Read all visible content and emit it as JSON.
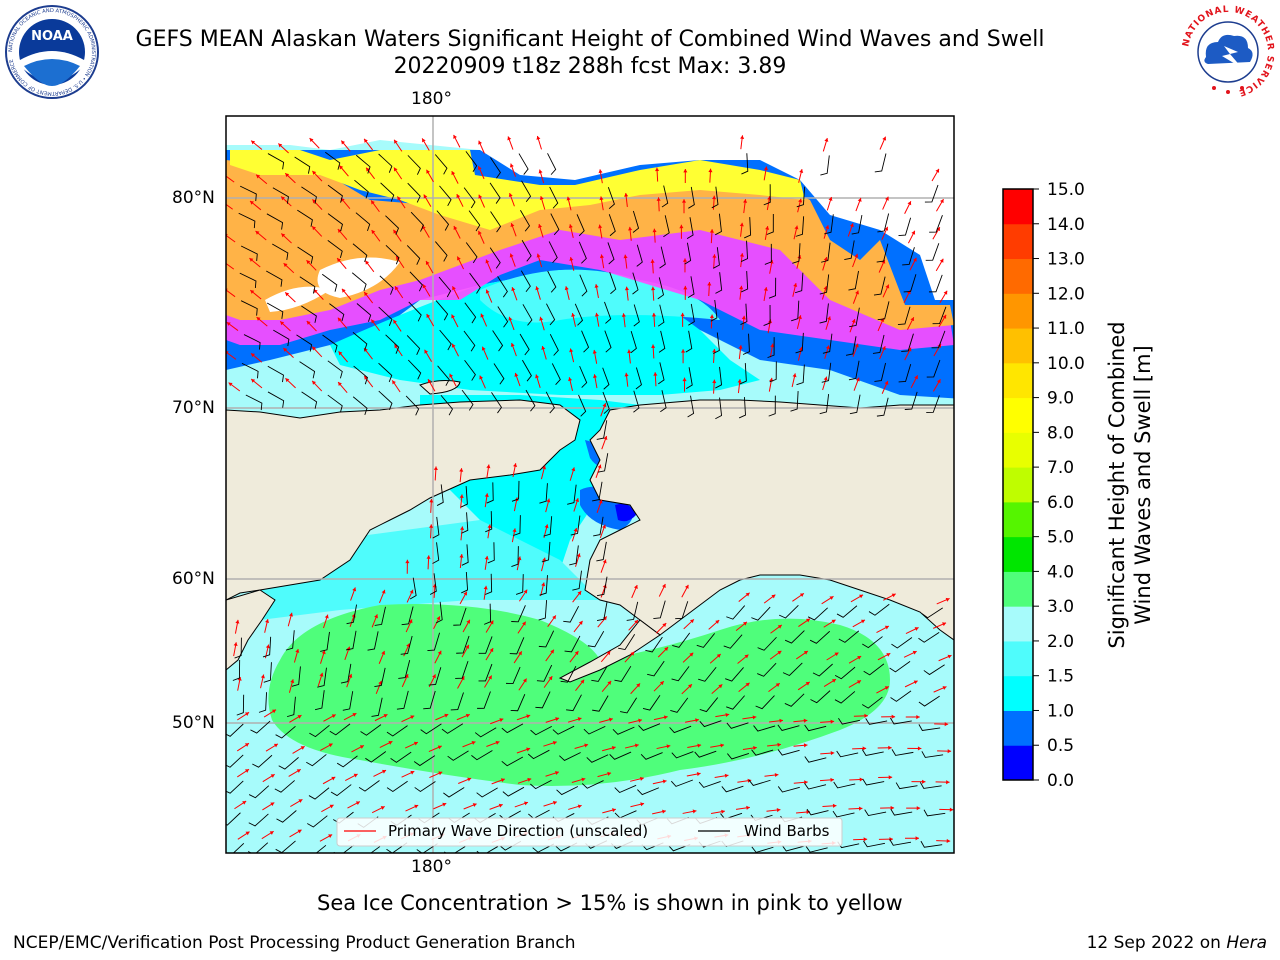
{
  "header": {
    "title_line1": "GEFS MEAN Alaskan Waters Significant Height of Combined Wind Waves and Swell",
    "title_line2": "20220909 t18z 288h fcst   Max: 3.89"
  },
  "logos": {
    "left": {
      "name": "noaa-logo",
      "text": "NOAA",
      "ring_text": "NATIONAL OCEANIC AND ATMOSPHERIC ADMINISTRATION • U.S. DEPARTMENT OF COMMERCE"
    },
    "right": {
      "name": "nws-logo",
      "ring_text": "NATIONAL WEATHER SERVICE"
    }
  },
  "map": {
    "lon_labels": [
      "180°",
      "180°"
    ],
    "lat_labels": [
      "80°N",
      "70°N",
      "60°N",
      "50°N"
    ],
    "legend": {
      "wave_label": "Primary Wave Direction (unscaled)",
      "barb_label": "Wind Barbs",
      "wave_color": "#ff0000",
      "barb_color": "#000000"
    },
    "colors": {
      "land": "#efebdb",
      "ocean_default": "#a7fbfb",
      "ice_magenta": "#ff4bff",
      "ice_orange": "#ffb347",
      "ice_yellow": "#ffff33",
      "grid": "#b0b0b0"
    }
  },
  "colorbar": {
    "label_line1": "Significant Height of Combined",
    "label_line2": "Wind Waves and Swell [m]",
    "ticks": [
      "0.0",
      "0.5",
      "1.0",
      "1.5",
      "2.0",
      "3.0",
      "4.0",
      "5.0",
      "6.0",
      "7.0",
      "8.0",
      "9.0",
      "10.0",
      "11.0",
      "12.0",
      "13.0",
      "14.0",
      "15.0"
    ],
    "colors": [
      "#0000ff",
      "#0070ff",
      "#00ffff",
      "#4ffcfc",
      "#a7fbfb",
      "#4ffe7b",
      "#00e600",
      "#55f500",
      "#bffd00",
      "#e8ff00",
      "#ffff00",
      "#ffe600",
      "#ffc000",
      "#ff9600",
      "#ff6a00",
      "#ff3c00",
      "#ff0000"
    ]
  },
  "caption": "Sea Ice Concentration > 15% is shown in pink to yellow",
  "footer": {
    "left": "NCEP/EMC/Verification Post Processing Product Generation Branch",
    "right_date": "12 Sep 2022 on ",
    "right_host": "Hera"
  }
}
